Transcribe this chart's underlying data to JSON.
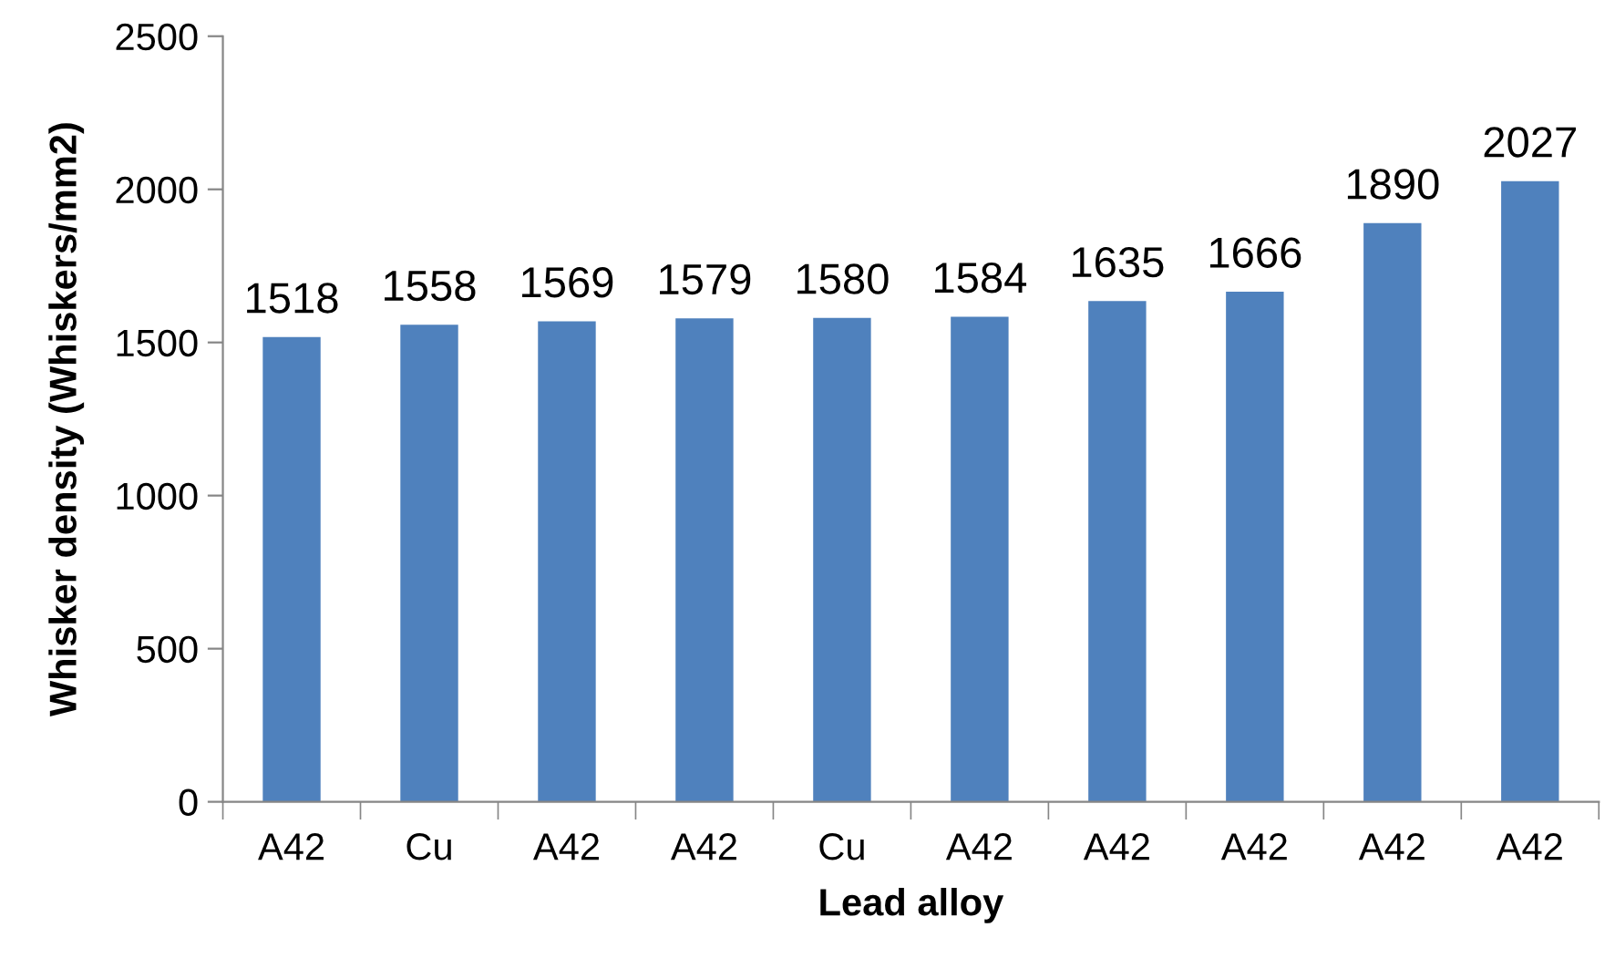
{
  "chart_data": {
    "type": "bar",
    "xlabel": "Lead alloy",
    "ylabel": "Whisker density (Whiskers/mm2)",
    "categories": [
      "A42",
      "Cu",
      "A42",
      "A42",
      "Cu",
      "A42",
      "A42",
      "A42",
      "A42",
      "A42"
    ],
    "values": [
      1518,
      1558,
      1569,
      1579,
      1580,
      1584,
      1635,
      1666,
      1890,
      2027
    ],
    "color": "#4f81bd",
    "ylim": [
      0,
      2500
    ],
    "yticks": [
      0,
      500,
      1000,
      1500,
      2000,
      2500
    ],
    "grid": false,
    "data_labels": true
  }
}
